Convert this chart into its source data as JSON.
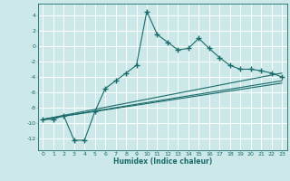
{
  "xlabel": "Humidex (Indice chaleur)",
  "background_color": "#cce8e8",
  "grid_color": "#ffffff",
  "line_color": "#1a6b6b",
  "xlim": [
    -0.5,
    23.5
  ],
  "ylim": [
    -13.5,
    5.5
  ],
  "yticks": [
    -12,
    -10,
    -8,
    -6,
    -4,
    -2,
    0,
    2,
    4
  ],
  "xticks": [
    0,
    1,
    2,
    3,
    4,
    5,
    6,
    7,
    8,
    9,
    10,
    11,
    12,
    13,
    14,
    15,
    16,
    17,
    18,
    19,
    20,
    21,
    22,
    23
  ],
  "main_x": [
    0,
    1,
    2,
    3,
    4,
    5,
    6,
    7,
    8,
    9,
    10,
    11,
    12,
    13,
    14,
    15,
    16,
    17,
    18,
    19,
    20,
    21,
    22,
    23
  ],
  "main_y": [
    -9.5,
    -9.5,
    -9.0,
    -12.2,
    -12.2,
    -8.5,
    -5.5,
    -4.5,
    -3.5,
    -2.5,
    4.5,
    1.5,
    0.5,
    -0.5,
    -0.3,
    1.0,
    -0.3,
    -1.5,
    -2.5,
    -3.0,
    -3.0,
    -3.2,
    -3.5,
    -4.0
  ],
  "line2_x": [
    0,
    23
  ],
  "line2_y": [
    -9.5,
    -4.5
  ],
  "line3_x": [
    0,
    23
  ],
  "line3_y": [
    -9.5,
    -3.5
  ],
  "line4_x": [
    0,
    23
  ],
  "line4_y": [
    -9.5,
    -4.8
  ]
}
